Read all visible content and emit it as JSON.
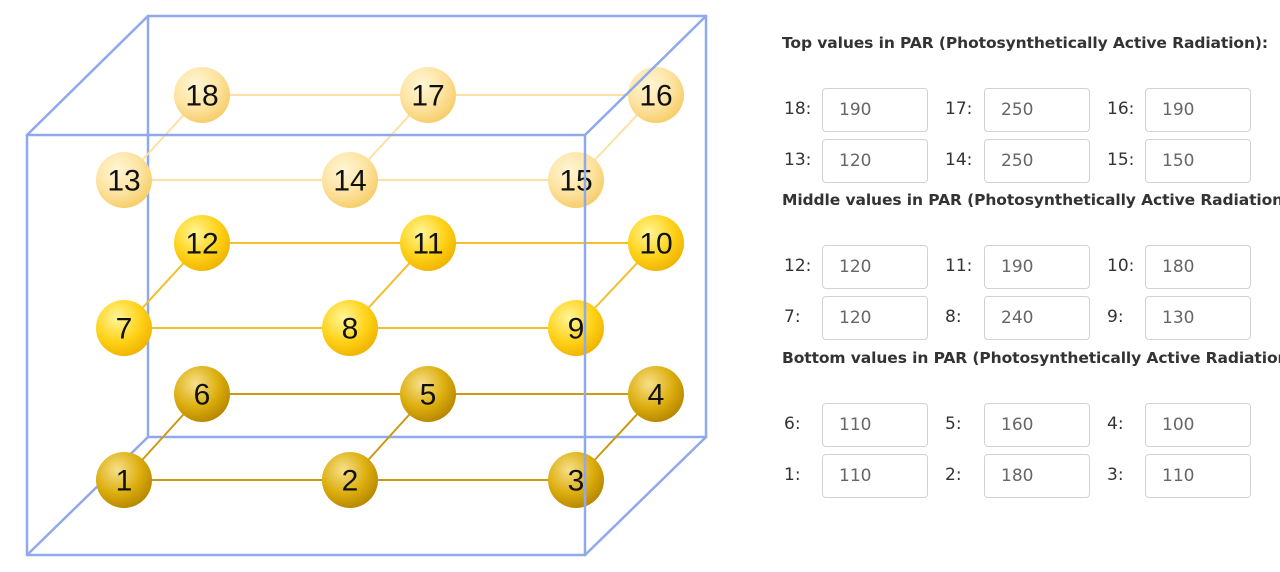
{
  "nodes": [
    {
      "id": "1",
      "layer": "bottom",
      "value": "110"
    },
    {
      "id": "2",
      "layer": "bottom",
      "value": "180"
    },
    {
      "id": "3",
      "layer": "bottom",
      "value": "110"
    },
    {
      "id": "4",
      "layer": "bottom",
      "value": "100"
    },
    {
      "id": "5",
      "layer": "bottom",
      "value": "160"
    },
    {
      "id": "6",
      "layer": "bottom",
      "value": "110"
    },
    {
      "id": "7",
      "layer": "middle",
      "value": "120"
    },
    {
      "id": "8",
      "layer": "middle",
      "value": "240"
    },
    {
      "id": "9",
      "layer": "middle",
      "value": "130"
    },
    {
      "id": "10",
      "layer": "middle",
      "value": "180"
    },
    {
      "id": "11",
      "layer": "middle",
      "value": "190"
    },
    {
      "id": "12",
      "layer": "middle",
      "value": "120"
    },
    {
      "id": "13",
      "layer": "top",
      "value": "120"
    },
    {
      "id": "14",
      "layer": "top",
      "value": "250"
    },
    {
      "id": "15",
      "layer": "top",
      "value": "150"
    },
    {
      "id": "16",
      "layer": "top",
      "value": "190"
    },
    {
      "id": "17",
      "layer": "top",
      "value": "250"
    },
    {
      "id": "18",
      "layer": "top",
      "value": "190"
    }
  ],
  "edges": [
    [
      "1",
      "2"
    ],
    [
      "2",
      "3"
    ],
    [
      "6",
      "5"
    ],
    [
      "5",
      "4"
    ],
    [
      "1",
      "6"
    ],
    [
      "2",
      "5"
    ],
    [
      "3",
      "4"
    ],
    [
      "7",
      "8"
    ],
    [
      "8",
      "9"
    ],
    [
      "12",
      "11"
    ],
    [
      "11",
      "10"
    ],
    [
      "7",
      "12"
    ],
    [
      "8",
      "11"
    ],
    [
      "9",
      "10"
    ],
    [
      "13",
      "14"
    ],
    [
      "14",
      "15"
    ],
    [
      "18",
      "17"
    ],
    [
      "17",
      "16"
    ],
    [
      "13",
      "18"
    ],
    [
      "14",
      "17"
    ],
    [
      "15",
      "16"
    ]
  ],
  "colors": {
    "box": "#8fa9ec",
    "bottom": {
      "light": "#f3d36a",
      "dark": "#c99700",
      "line": "#c99a14"
    },
    "middle": {
      "light": "#fff185",
      "dark": "#f1bb00",
      "line": "#f0c030"
    },
    "top": {
      "light": "#fff2c5",
      "dark": "#f7cf6c",
      "line": "#fbe1a6"
    }
  },
  "sections": [
    {
      "heading": "Top values in PAR (Photosynthetically Active Radiation):",
      "rows": [
        [
          {
            "label": "18:",
            "value": "190"
          },
          {
            "label": "17:",
            "value": "250"
          },
          {
            "label": "16:",
            "value": "190"
          }
        ],
        [
          {
            "label": "13:",
            "value": "120"
          },
          {
            "label": "14:",
            "value": "250"
          },
          {
            "label": "15:",
            "value": "150"
          }
        ]
      ]
    },
    {
      "heading": "Middle values in PAR (Photosynthetically Active Radiation):",
      "rows": [
        [
          {
            "label": "12:",
            "value": "120"
          },
          {
            "label": "11:",
            "value": "190"
          },
          {
            "label": "10:",
            "value": "180"
          }
        ],
        [
          {
            "label": "7:",
            "value": "120"
          },
          {
            "label": "8:",
            "value": "240"
          },
          {
            "label": "9:",
            "value": "130"
          }
        ]
      ]
    },
    {
      "heading": "Bottom values in PAR (Photosynthetically Active Radiation):",
      "rows": [
        [
          {
            "label": "6:",
            "value": "110"
          },
          {
            "label": "5:",
            "value": "160"
          },
          {
            "label": "4:",
            "value": "100"
          }
        ],
        [
          {
            "label": "1:",
            "value": "110"
          },
          {
            "label": "2:",
            "value": "180"
          },
          {
            "label": "3:",
            "value": "110"
          }
        ]
      ]
    }
  ]
}
